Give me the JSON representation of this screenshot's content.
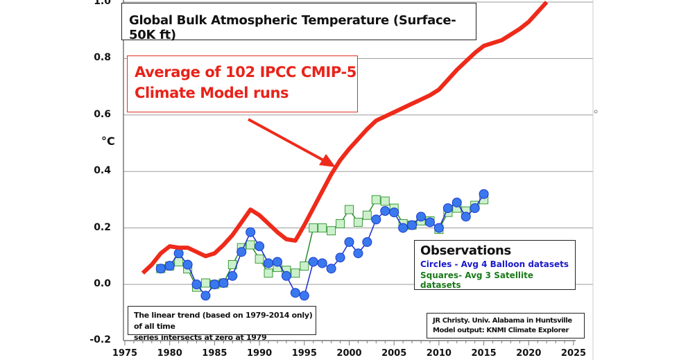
{
  "chart_data": {
    "type": "line",
    "title": "Global Bulk Atmospheric Temperature (Surface-50K ft)",
    "ylabel": "°C",
    "xlabel": "",
    "xlim": [
      1975,
      2025
    ],
    "ylim": [
      -0.2,
      1.0
    ],
    "xticks": [
      1975,
      1980,
      1985,
      1990,
      1995,
      2000,
      2005,
      2010,
      2015,
      2020,
      2025
    ],
    "yticks": [
      "-0.2",
      "0.0",
      "0.2",
      "0.4",
      "0.6",
      "0.8",
      "1.0"
    ],
    "grid": "horizontal",
    "series": [
      {
        "name": "Average of 102 IPCC CMIP-5 Climate Model runs",
        "color": "#ee2a1a",
        "x": [
          1977,
          1978,
          1979,
          1980,
          1981,
          1982,
          1983,
          1984,
          1985,
          1986,
          1987,
          1988,
          1989,
          1990,
          1991,
          1992,
          1993,
          1994,
          1995,
          1996,
          1997,
          1998,
          1999,
          2000,
          2001,
          2002,
          2003,
          2004,
          2005,
          2006,
          2007,
          2008,
          2009,
          2010,
          2011,
          2012,
          2013,
          2014,
          2015,
          2016,
          2017,
          2018,
          2019,
          2020,
          2021,
          2022
        ],
        "y": [
          0.04,
          0.07,
          0.11,
          0.135,
          0.13,
          0.13,
          0.115,
          0.1,
          0.11,
          0.14,
          0.175,
          0.22,
          0.265,
          0.245,
          0.215,
          0.185,
          0.16,
          0.155,
          0.21,
          0.27,
          0.33,
          0.39,
          0.44,
          0.48,
          0.515,
          0.55,
          0.58,
          0.595,
          0.61,
          0.625,
          0.64,
          0.655,
          0.67,
          0.69,
          0.725,
          0.76,
          0.79,
          0.82,
          0.845,
          0.855,
          0.865,
          0.885,
          0.905,
          0.93,
          0.965,
          1.0
        ]
      },
      {
        "name": "Squares- Avg 3 Satellite datasets",
        "color": "#2a8a2a",
        "marker": "square",
        "x": [
          1979,
          1980,
          1981,
          1982,
          1983,
          1984,
          1985,
          1986,
          1987,
          1988,
          1989,
          1990,
          1991,
          1992,
          1993,
          1994,
          1995,
          1996,
          1997,
          1998,
          1999,
          2000,
          2001,
          2002,
          2003,
          2004,
          2005,
          2006,
          2007,
          2008,
          2009,
          2010,
          2011,
          2012,
          2013,
          2014,
          2015
        ],
        "y": [
          0.056,
          0.065,
          0.08,
          0.055,
          -0.01,
          0.005,
          0.0,
          0.005,
          0.07,
          0.13,
          0.14,
          0.09,
          0.04,
          0.06,
          0.05,
          0.04,
          0.065,
          0.2,
          0.2,
          0.19,
          0.215,
          0.265,
          0.22,
          0.245,
          0.3,
          0.295,
          0.27,
          0.215,
          0.21,
          0.225,
          0.225,
          0.195,
          0.255,
          0.27,
          0.26,
          0.28,
          0.3
        ]
      },
      {
        "name": "Circles - Avg 4 Balloon datasets",
        "color": "#1a2acc",
        "marker": "circle",
        "x": [
          1979,
          1980,
          1981,
          1982,
          1983,
          1984,
          1985,
          1986,
          1987,
          1988,
          1989,
          1990,
          1991,
          1992,
          1993,
          1994,
          1995,
          1996,
          1997,
          1998,
          1999,
          2000,
          2001,
          2002,
          2003,
          2004,
          2005,
          2006,
          2007,
          2008,
          2009,
          2010,
          2011,
          2012,
          2013,
          2014,
          2015
        ],
        "y": [
          0.056,
          0.066,
          0.11,
          0.07,
          0.0,
          -0.04,
          0.0,
          0.005,
          0.03,
          0.115,
          0.185,
          0.135,
          0.075,
          0.08,
          0.03,
          -0.03,
          -0.04,
          0.08,
          0.075,
          0.056,
          0.095,
          0.15,
          0.11,
          0.15,
          0.23,
          0.26,
          0.255,
          0.2,
          0.21,
          0.24,
          0.22,
          0.2,
          0.27,
          0.29,
          0.24,
          0.27,
          0.32
        ]
      }
    ],
    "annotations": {
      "callout_line1": "Average of 102 IPCC CMIP-5",
      "callout_line2": "Climate Model runs",
      "legend_title": "Observations",
      "legend_circles": "Circles - Avg 4 Balloon datasets",
      "legend_squares": "Squares- Avg 3 Satellite datasets",
      "trend_line1": "The linear trend (based on 1979-2014 only) of all time",
      "trend_line2": "series intersects at zero at 1979",
      "credit_line1": "JR Christy. Univ. Alabama in Huntsville",
      "credit_line2": "Model output: KNMI Climate Explorer"
    }
  }
}
